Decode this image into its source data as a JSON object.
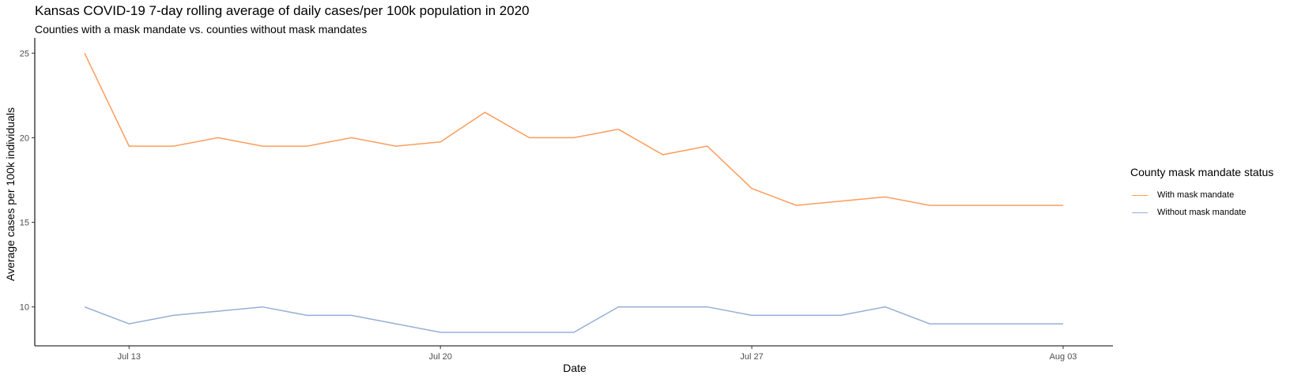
{
  "chart_data": {
    "type": "line",
    "title": "Kansas COVID-19 7-day rolling average of daily cases/per 100k population in 2020",
    "subtitle": "Counties with a mask mandate vs. counties without mask mandates",
    "xlabel": "Date",
    "ylabel": "Average cases per 100k individuals",
    "x": [
      "2020-07-12",
      "2020-07-13",
      "2020-07-14",
      "2020-07-15",
      "2020-07-16",
      "2020-07-17",
      "2020-07-18",
      "2020-07-19",
      "2020-07-20",
      "2020-07-21",
      "2020-07-22",
      "2020-07-23",
      "2020-07-24",
      "2020-07-25",
      "2020-07-26",
      "2020-07-27",
      "2020-07-28",
      "2020-07-29",
      "2020-07-30",
      "2020-07-31",
      "2020-08-01",
      "2020-08-02",
      "2020-08-03"
    ],
    "xlim": [
      "2020-07-11",
      "2020-08-03"
    ],
    "x_ticks": [
      {
        "date": "2020-07-13",
        "label": "Jul 13"
      },
      {
        "date": "2020-07-20",
        "label": "Jul 20"
      },
      {
        "date": "2020-07-27",
        "label": "Jul 27"
      },
      {
        "date": "2020-08-03",
        "label": "Aug 03"
      }
    ],
    "ylim": [
      7.7,
      25.9
    ],
    "y_ticks": [
      10,
      15,
      20,
      25
    ],
    "grid": false,
    "legend": {
      "title": "County mask mandate status",
      "position": "right"
    },
    "series": [
      {
        "name": "With mask mandate",
        "color": "#fc9d5d",
        "values": [
          25,
          19.5,
          19.5,
          20,
          19.5,
          19.5,
          20,
          19.5,
          19.75,
          21.5,
          20,
          20,
          20.5,
          19,
          19.5,
          17,
          16,
          16.25,
          16.5,
          16,
          16,
          16,
          16
        ]
      },
      {
        "name": "Without mask mandate",
        "color": "#96afd6",
        "values": [
          10,
          9,
          9.5,
          9.75,
          10,
          9.5,
          9.5,
          9,
          8.5,
          8.5,
          8.5,
          8.5,
          10,
          10,
          10,
          9.5,
          9.5,
          9.5,
          10,
          9,
          9,
          9,
          9
        ]
      }
    ]
  }
}
